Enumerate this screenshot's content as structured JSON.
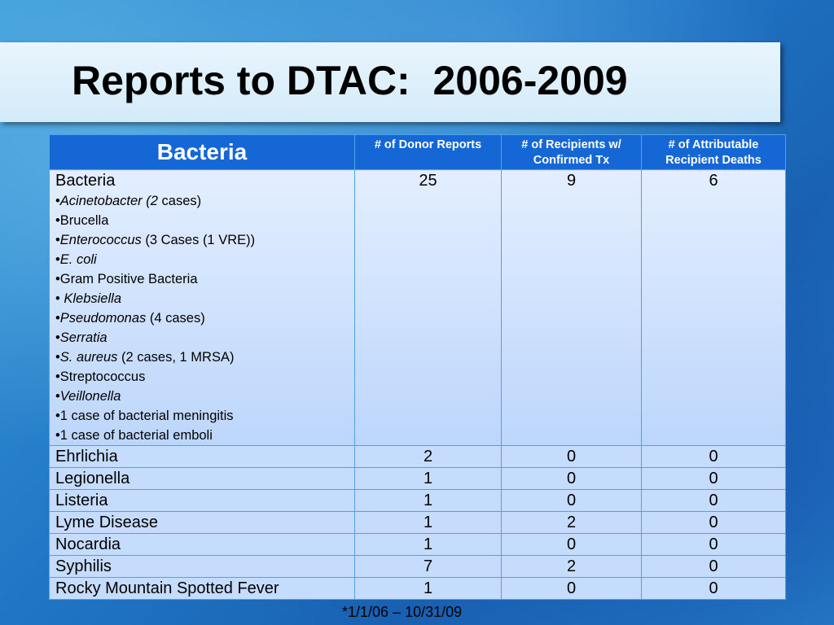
{
  "title": "Reports to DTAC:  2006-2009",
  "table": {
    "headers": [
      "Bacteria",
      "# of Donor Reports",
      "# of Recipients w/ Confirmed Tx",
      "# of Attributable Recipient Deaths"
    ],
    "bacteria_row": {
      "name": "Bacteria",
      "donor_reports": "25",
      "recipients": "9",
      "deaths": "6",
      "items": [
        {
          "italic": "Acinetobacter (2",
          "plain": " cases)"
        },
        {
          "italic": "",
          "plain": "Brucella"
        },
        {
          "italic": "Enterococcus",
          "plain": " (3 Cases (1 VRE))"
        },
        {
          "italic": "E. coli",
          "plain": ""
        },
        {
          "italic": "",
          "plain": "Gram Positive Bacteria"
        },
        {
          "italic": " Klebsiella",
          "plain": ""
        },
        {
          "italic": "Pseudomonas",
          "plain": " (4 cases)"
        },
        {
          "italic": "Serratia",
          "plain": ""
        },
        {
          "italic": "S. aureus",
          "plain": " (2 cases, 1 MRSA)"
        },
        {
          "italic": "",
          "plain": "Streptococcus"
        },
        {
          "italic": "Veillonella",
          "plain": ""
        },
        {
          "italic": "",
          "plain": "1 case of bacterial meningitis"
        },
        {
          "italic": "",
          "plain": "1 case of bacterial emboli"
        }
      ]
    },
    "rows": [
      {
        "name": "Ehrlichia",
        "donor_reports": "2",
        "recipients": "0",
        "deaths": "0"
      },
      {
        "name": "Legionella",
        "donor_reports": "1",
        "recipients": "0",
        "deaths": "0"
      },
      {
        "name": "Listeria",
        "donor_reports": "1",
        "recipients": "0",
        "deaths": "0"
      },
      {
        "name": "Lyme Disease",
        "donor_reports": "1",
        "recipients": "2",
        "deaths": "0"
      },
      {
        "name": "Nocardia",
        "donor_reports": "1",
        "recipients": "0",
        "deaths": "0"
      },
      {
        "name": "Syphilis",
        "donor_reports": "7",
        "recipients": "2",
        "deaths": "0"
      },
      {
        "name": "Rocky Mountain Spotted Fever",
        "donor_reports": "1",
        "recipients": "0",
        "deaths": "0"
      }
    ]
  },
  "footnote": "*1/1/06 – 10/31/09"
}
